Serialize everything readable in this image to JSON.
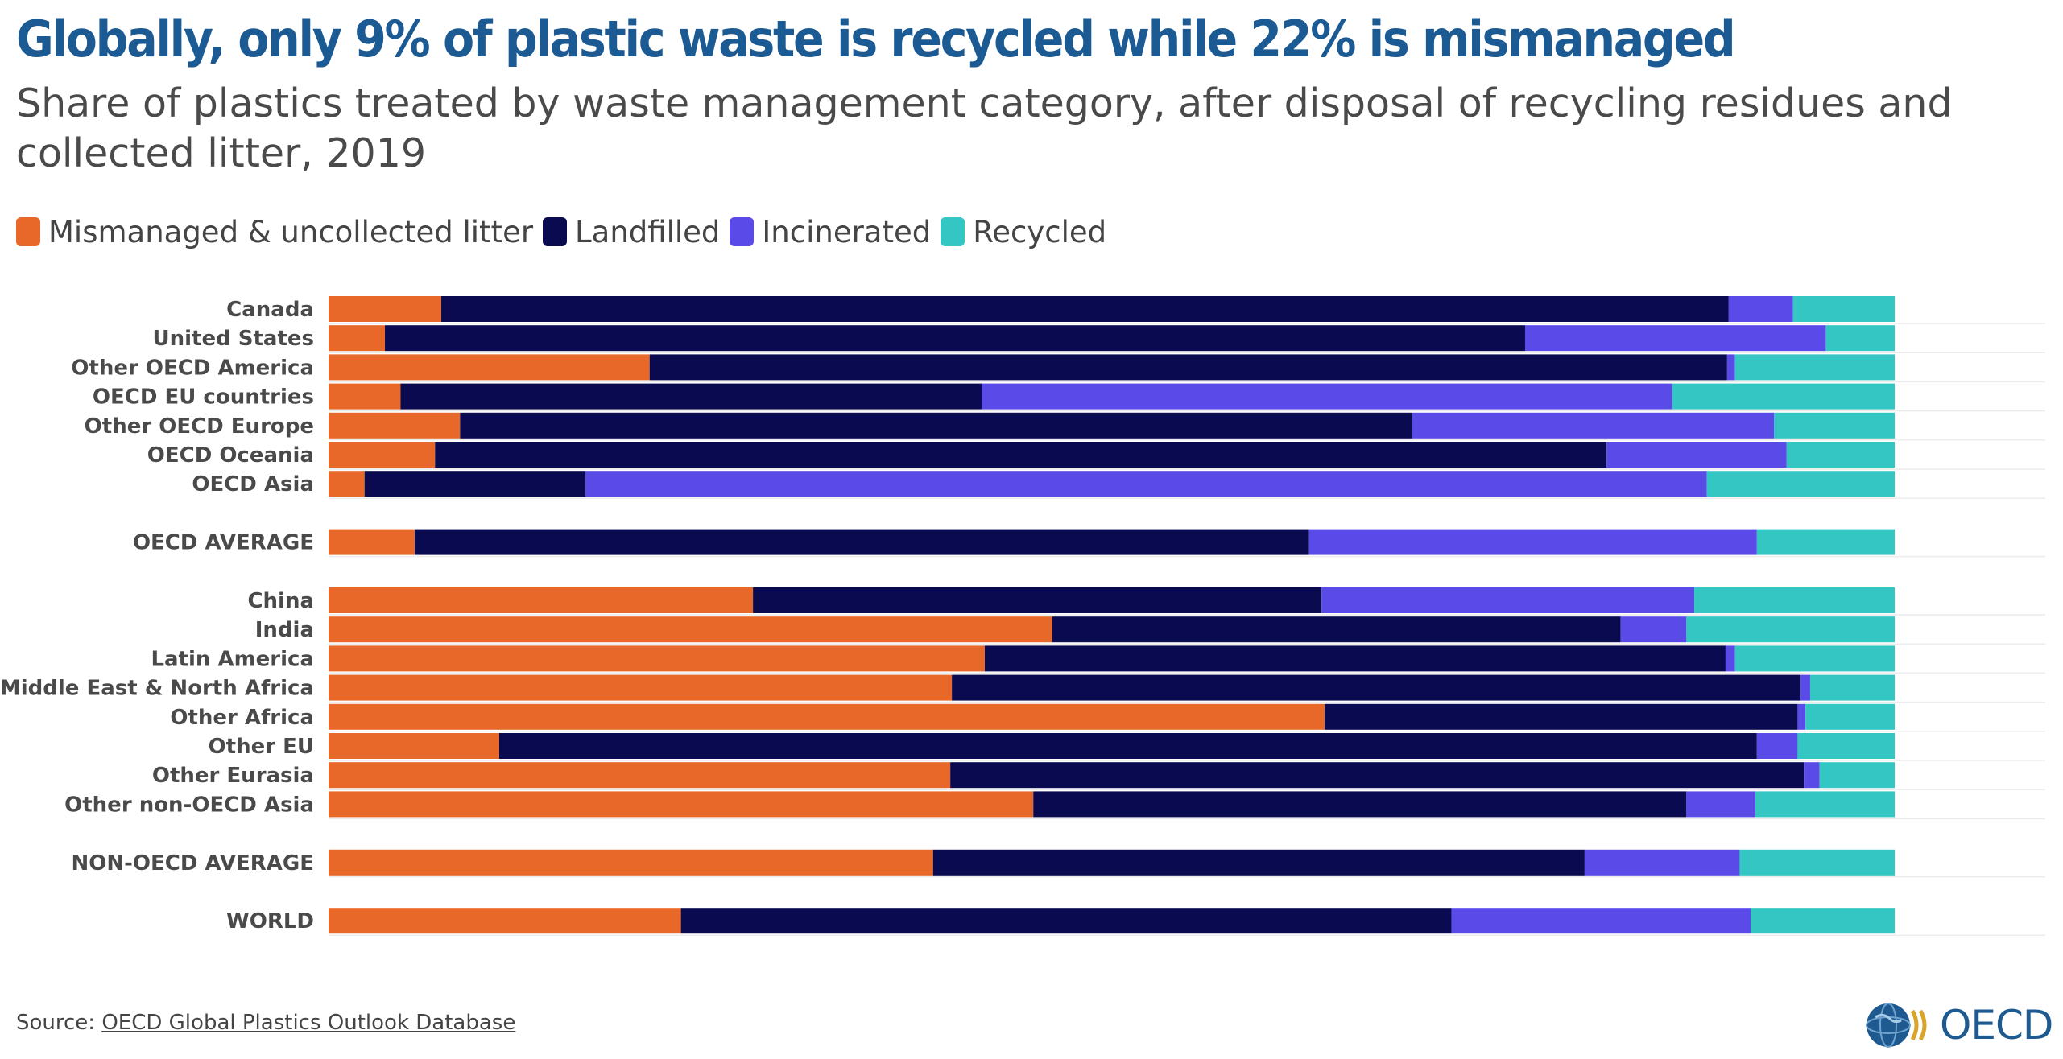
{
  "title": "Globally, only 9% of plastic waste is recycled while 22% is mismanaged",
  "subtitle": "Share of plastics treated by waste management category, after disposal of recycling residues and collected litter, 2019",
  "source": {
    "label": "Source: ",
    "link_text": "OECD Global Plastics Outlook Database"
  },
  "logo": {
    "text": "OECD",
    "icon": "oecd-globe-icon"
  },
  "colors": {
    "mismanaged": "#e8682a",
    "landfilled": "#0a0a50",
    "incinerated": "#5a4be8",
    "recycled": "#33c6c2"
  },
  "chart_data": {
    "type": "bar",
    "orientation": "horizontal",
    "stacked": true,
    "normalized": true,
    "xlim": [
      0,
      100
    ],
    "legend_position": "top-left",
    "series": [
      {
        "name": "Mismanaged & uncollected litter",
        "color": "#e8682a"
      },
      {
        "name": "Landfilled",
        "color": "#0a0a50"
      },
      {
        "name": "Incinerated",
        "color": "#5a4be8"
      },
      {
        "name": "Recycled",
        "color": "#33c6c2"
      }
    ],
    "groups": [
      [
        {
          "label": "Canada",
          "values": [
            7.2,
            82.2,
            4.1,
            6.5
          ]
        },
        {
          "label": "United States",
          "values": [
            3.6,
            72.8,
            19.2,
            4.4
          ]
        },
        {
          "label": "Other OECD America",
          "values": [
            20.5,
            68.8,
            0.5,
            10.2
          ]
        },
        {
          "label": "OECD EU countries",
          "values": [
            4.6,
            37.1,
            44.1,
            14.2
          ]
        },
        {
          "label": "Other OECD Europe",
          "values": [
            8.4,
            60.8,
            23.1,
            7.7
          ]
        },
        {
          "label": "OECD Oceania",
          "values": [
            6.8,
            74.8,
            11.5,
            6.9
          ]
        },
        {
          "label": "OECD Asia",
          "values": [
            2.3,
            14.1,
            71.6,
            12.0
          ]
        }
      ],
      [
        {
          "label": "OECD AVERAGE",
          "values": [
            5.5,
            57.1,
            28.6,
            8.8
          ]
        }
      ],
      [
        {
          "label": "China",
          "values": [
            27.1,
            36.3,
            23.8,
            12.8
          ]
        },
        {
          "label": "India",
          "values": [
            46.2,
            36.3,
            4.2,
            13.3
          ]
        },
        {
          "label": "Latin America",
          "values": [
            41.9,
            47.3,
            0.6,
            10.2
          ]
        },
        {
          "label": "Middle East & North Africa",
          "values": [
            39.8,
            54.2,
            0.6,
            5.4
          ]
        },
        {
          "label": "Other Africa",
          "values": [
            63.6,
            30.2,
            0.5,
            5.7
          ]
        },
        {
          "label": "Other EU",
          "values": [
            10.9,
            80.3,
            2.6,
            6.2
          ]
        },
        {
          "label": "Other Eurasia",
          "values": [
            39.7,
            54.5,
            1.0,
            4.8
          ]
        },
        {
          "label": "Other non-OECD Asia",
          "values": [
            45.0,
            41.7,
            4.4,
            8.9
          ]
        }
      ],
      [
        {
          "label": "NON-OECD AVERAGE",
          "values": [
            38.6,
            41.6,
            9.9,
            9.9
          ]
        }
      ],
      [
        {
          "label": "WORLD",
          "values": [
            22.5,
            49.2,
            19.1,
            9.2
          ]
        }
      ]
    ]
  }
}
